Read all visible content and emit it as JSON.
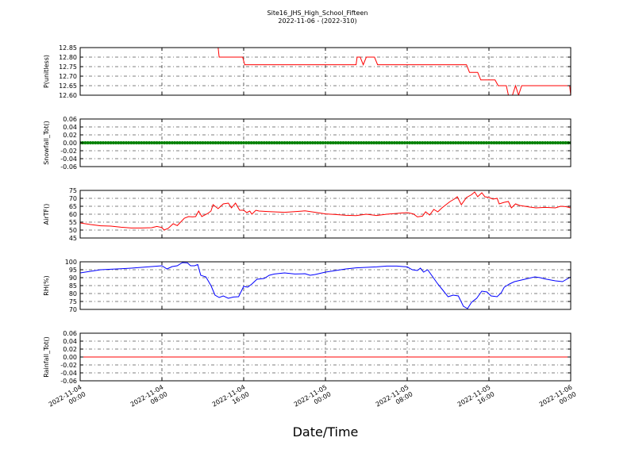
{
  "title": "Site16_JHS_High_School_Fifteen",
  "subtitle": "2022-11-06 - (2022-310)",
  "xlabel": "Date/Time",
  "x_ticks": [
    {
      "line1": "2022-11-04",
      "line2": "00:00",
      "h": 0
    },
    {
      "line1": "2022-11-04",
      "line2": "08:00",
      "h": 8
    },
    {
      "line1": "2022-11-04",
      "line2": "16:00",
      "h": 16
    },
    {
      "line1": "2022-11-05",
      "line2": "00:00",
      "h": 24
    },
    {
      "line1": "2022-11-05",
      "line2": "08:00",
      "h": 32
    },
    {
      "line1": "2022-11-05",
      "line2": "16:00",
      "h": 40
    },
    {
      "line1": "2022-11-06",
      "line2": "00:00",
      "h": 48
    }
  ],
  "colors": {
    "red": "#ff0000",
    "green": "#008000",
    "blue": "#0000ff"
  },
  "chart_data": [
    {
      "type": "line",
      "ylabel": "P(unitless)",
      "ylim": [
        12.6,
        12.85
      ],
      "yticks": [
        "12.60",
        "12.65",
        "12.70",
        "12.75",
        "12.80",
        "12.85"
      ],
      "yvals": [
        12.6,
        12.65,
        12.7,
        12.75,
        12.8,
        12.85
      ],
      "grid": true,
      "series": [
        {
          "color": "#ff0000",
          "marker": false,
          "points": [
            [
              0,
              12.85
            ],
            [
              13.5,
              12.85
            ],
            [
              13.6,
              12.8
            ],
            [
              15.9,
              12.8
            ],
            [
              16.1,
              12.76
            ],
            [
              27,
              12.76
            ],
            [
              27.1,
              12.8
            ],
            [
              27.4,
              12.8
            ],
            [
              27.7,
              12.76
            ],
            [
              28,
              12.8
            ],
            [
              28.8,
              12.8
            ],
            [
              29.1,
              12.76
            ],
            [
              37.8,
              12.76
            ],
            [
              38.1,
              12.72
            ],
            [
              38.9,
              12.72
            ],
            [
              39.2,
              12.68
            ],
            [
              40.6,
              12.68
            ],
            [
              40.9,
              12.65
            ],
            [
              41.7,
              12.65
            ],
            [
              41.9,
              12.6
            ],
            [
              42.3,
              12.6
            ],
            [
              42.6,
              12.65
            ],
            [
              42.9,
              12.6
            ],
            [
              43.2,
              12.65
            ],
            [
              47.9,
              12.65
            ],
            [
              48,
              12.6
            ]
          ]
        }
      ]
    },
    {
      "type": "line",
      "ylabel": "Snowfall_Tot()",
      "ylim": [
        -0.06,
        0.06
      ],
      "yticks": [
        "-0.06",
        "-0.04",
        "-0.02",
        "0.00",
        "0.02",
        "0.04",
        "0.06"
      ],
      "yvals": [
        -0.06,
        -0.04,
        -0.02,
        0,
        0.02,
        0.04,
        0.06
      ],
      "grid": true,
      "series": [
        {
          "color": "#008000",
          "marker": true,
          "constant": 0
        }
      ]
    },
    {
      "type": "line",
      "ylabel": "AirTF()",
      "ylim": [
        45,
        75
      ],
      "yticks": [
        "45",
        "50",
        "55",
        "60",
        "65",
        "70",
        "75"
      ],
      "yvals": [
        45,
        50,
        55,
        60,
        65,
        70,
        75
      ],
      "grid": true,
      "series": [
        {
          "color": "#ff0000",
          "marker": false,
          "points": [
            [
              0,
              54.5
            ],
            [
              1,
              53.5
            ],
            [
              2,
              52.7
            ],
            [
              3,
              52.5
            ],
            [
              4,
              51.8
            ],
            [
              5,
              51.3
            ],
            [
              6,
              51.3
            ],
            [
              7,
              51.5
            ],
            [
              7.5,
              52.3
            ],
            [
              8,
              51.6
            ],
            [
              8.2,
              50
            ],
            [
              8.6,
              51
            ],
            [
              9.1,
              54
            ],
            [
              9.5,
              52.8
            ],
            [
              10.2,
              57.5
            ],
            [
              10.6,
              58.5
            ],
            [
              11,
              58.3
            ],
            [
              11.3,
              58.5
            ],
            [
              11.6,
              62
            ],
            [
              11.9,
              58.5
            ],
            [
              12.5,
              60.5
            ],
            [
              12.8,
              62
            ],
            [
              13,
              66
            ],
            [
              13.5,
              63.5
            ],
            [
              14,
              66.5
            ],
            [
              14.5,
              67
            ],
            [
              14.8,
              64
            ],
            [
              15.2,
              67
            ],
            [
              15.6,
              62.5
            ],
            [
              16,
              62.5
            ],
            [
              16.3,
              61
            ],
            [
              16.6,
              62
            ],
            [
              16.8,
              60
            ],
            [
              17.2,
              62.5
            ],
            [
              17.5,
              62
            ],
            [
              18.5,
              61.6
            ],
            [
              20,
              61.2
            ],
            [
              21,
              61.6
            ],
            [
              22,
              62.1
            ],
            [
              23,
              61.2
            ],
            [
              24,
              60.2
            ],
            [
              25,
              59.8
            ],
            [
              26,
              59.3
            ],
            [
              27,
              59.1
            ],
            [
              28,
              60
            ],
            [
              29,
              59.2
            ],
            [
              30,
              60
            ],
            [
              31,
              60.5
            ],
            [
              32,
              61
            ],
            [
              32.6,
              60.2
            ],
            [
              33,
              58.3
            ],
            [
              33.5,
              58.8
            ],
            [
              33.8,
              61.5
            ],
            [
              34.2,
              59.5
            ],
            [
              34.6,
              63
            ],
            [
              35,
              61.5
            ],
            [
              35.4,
              64
            ],
            [
              35.8,
              66
            ],
            [
              36.2,
              68
            ],
            [
              36.6,
              69.5
            ],
            [
              36.9,
              71
            ],
            [
              37.3,
              66
            ],
            [
              37.8,
              70.5
            ],
            [
              38.3,
              72.3
            ],
            [
              38.6,
              74
            ],
            [
              38.9,
              71
            ],
            [
              39.3,
              73.5
            ],
            [
              39.6,
              71
            ],
            [
              40,
              70.5
            ],
            [
              40.4,
              69.5
            ],
            [
              40.8,
              70
            ],
            [
              41,
              66.5
            ],
            [
              41.5,
              67.5
            ],
            [
              41.9,
              68
            ],
            [
              42.2,
              64
            ],
            [
              42.6,
              66.5
            ],
            [
              43,
              65.5
            ],
            [
              43.5,
              65
            ],
            [
              44,
              64.5
            ],
            [
              44.6,
              64
            ],
            [
              45.5,
              64.3
            ],
            [
              46.5,
              64
            ],
            [
              47,
              65
            ],
            [
              47.5,
              64.8
            ],
            [
              48,
              64
            ]
          ]
        }
      ]
    },
    {
      "type": "line",
      "ylabel": "RH(%)",
      "ylim": [
        70,
        100
      ],
      "yticks": [
        "70",
        "75",
        "80",
        "85",
        "90",
        "95",
        "100"
      ],
      "yvals": [
        70,
        75,
        80,
        85,
        90,
        95,
        100
      ],
      "grid": true,
      "series": [
        {
          "color": "#0000ff",
          "marker": false,
          "points": [
            [
              0,
              93
            ],
            [
              1,
              94
            ],
            [
              2,
              95
            ],
            [
              3,
              95.3
            ],
            [
              4,
              95.6
            ],
            [
              5,
              96
            ],
            [
              6,
              96.5
            ],
            [
              7,
              97
            ],
            [
              8,
              97.5
            ],
            [
              8.5,
              95.5
            ],
            [
              9,
              97
            ],
            [
              9.5,
              97.5
            ],
            [
              10,
              99.5
            ],
            [
              10.5,
              99.3
            ],
            [
              10.8,
              97.5
            ],
            [
              11.2,
              97.5
            ],
            [
              11.5,
              98.3
            ],
            [
              11.8,
              91.5
            ],
            [
              12.3,
              90.5
            ],
            [
              12.8,
              85
            ],
            [
              13.2,
              79
            ],
            [
              13.6,
              77.5
            ],
            [
              14,
              78.5
            ],
            [
              14.5,
              77
            ],
            [
              15,
              77.8
            ],
            [
              15.5,
              78
            ],
            [
              16,
              84.5
            ],
            [
              16.4,
              84
            ],
            [
              16.8,
              86
            ],
            [
              17.3,
              89
            ],
            [
              18,
              89.5
            ],
            [
              18.5,
              91.5
            ],
            [
              19,
              92.3
            ],
            [
              20,
              93
            ],
            [
              21,
              92.3
            ],
            [
              22,
              92.5
            ],
            [
              22.5,
              91.5
            ],
            [
              23,
              92
            ],
            [
              24,
              93.5
            ],
            [
              25,
              94.5
            ],
            [
              26,
              95.5
            ],
            [
              27,
              96.2
            ],
            [
              28,
              96.5
            ],
            [
              29,
              96.8
            ],
            [
              30,
              97.3
            ],
            [
              31,
              97.3
            ],
            [
              32,
              96.8
            ],
            [
              32.5,
              95
            ],
            [
              33,
              94.5
            ],
            [
              33.3,
              96
            ],
            [
              33.6,
              93.5
            ],
            [
              34,
              95
            ],
            [
              34.5,
              90.5
            ],
            [
              35,
              86
            ],
            [
              35.5,
              82
            ],
            [
              36,
              78
            ],
            [
              36.5,
              79
            ],
            [
              37,
              78.5
            ],
            [
              37.5,
              72
            ],
            [
              37.9,
              70.5
            ],
            [
              38.3,
              74.5
            ],
            [
              38.8,
              77
            ],
            [
              39.3,
              81.5
            ],
            [
              39.8,
              81
            ],
            [
              40.2,
              78.5
            ],
            [
              40.8,
              78
            ],
            [
              41.2,
              80.5
            ],
            [
              41.5,
              84
            ],
            [
              42,
              86
            ],
            [
              42.5,
              87.5
            ],
            [
              43.5,
              89
            ],
            [
              44.5,
              90.5
            ],
            [
              45,
              90
            ],
            [
              45.5,
              89.2
            ],
            [
              46.5,
              88
            ],
            [
              47.2,
              87.5
            ],
            [
              47.6,
              89
            ],
            [
              48,
              90.5
            ]
          ]
        }
      ]
    },
    {
      "type": "line",
      "ylabel": "Rainfall_Tot()",
      "ylim": [
        -0.06,
        0.06
      ],
      "yticks": [
        "-0.06",
        "-0.04",
        "-0.02",
        "0.00",
        "0.02",
        "0.04",
        "0.06"
      ],
      "yvals": [
        -0.06,
        -0.04,
        -0.02,
        0,
        0.02,
        0.04,
        0.06
      ],
      "grid": true,
      "series": [
        {
          "color": "#ff0000",
          "marker": false,
          "constant": 0
        }
      ]
    }
  ]
}
